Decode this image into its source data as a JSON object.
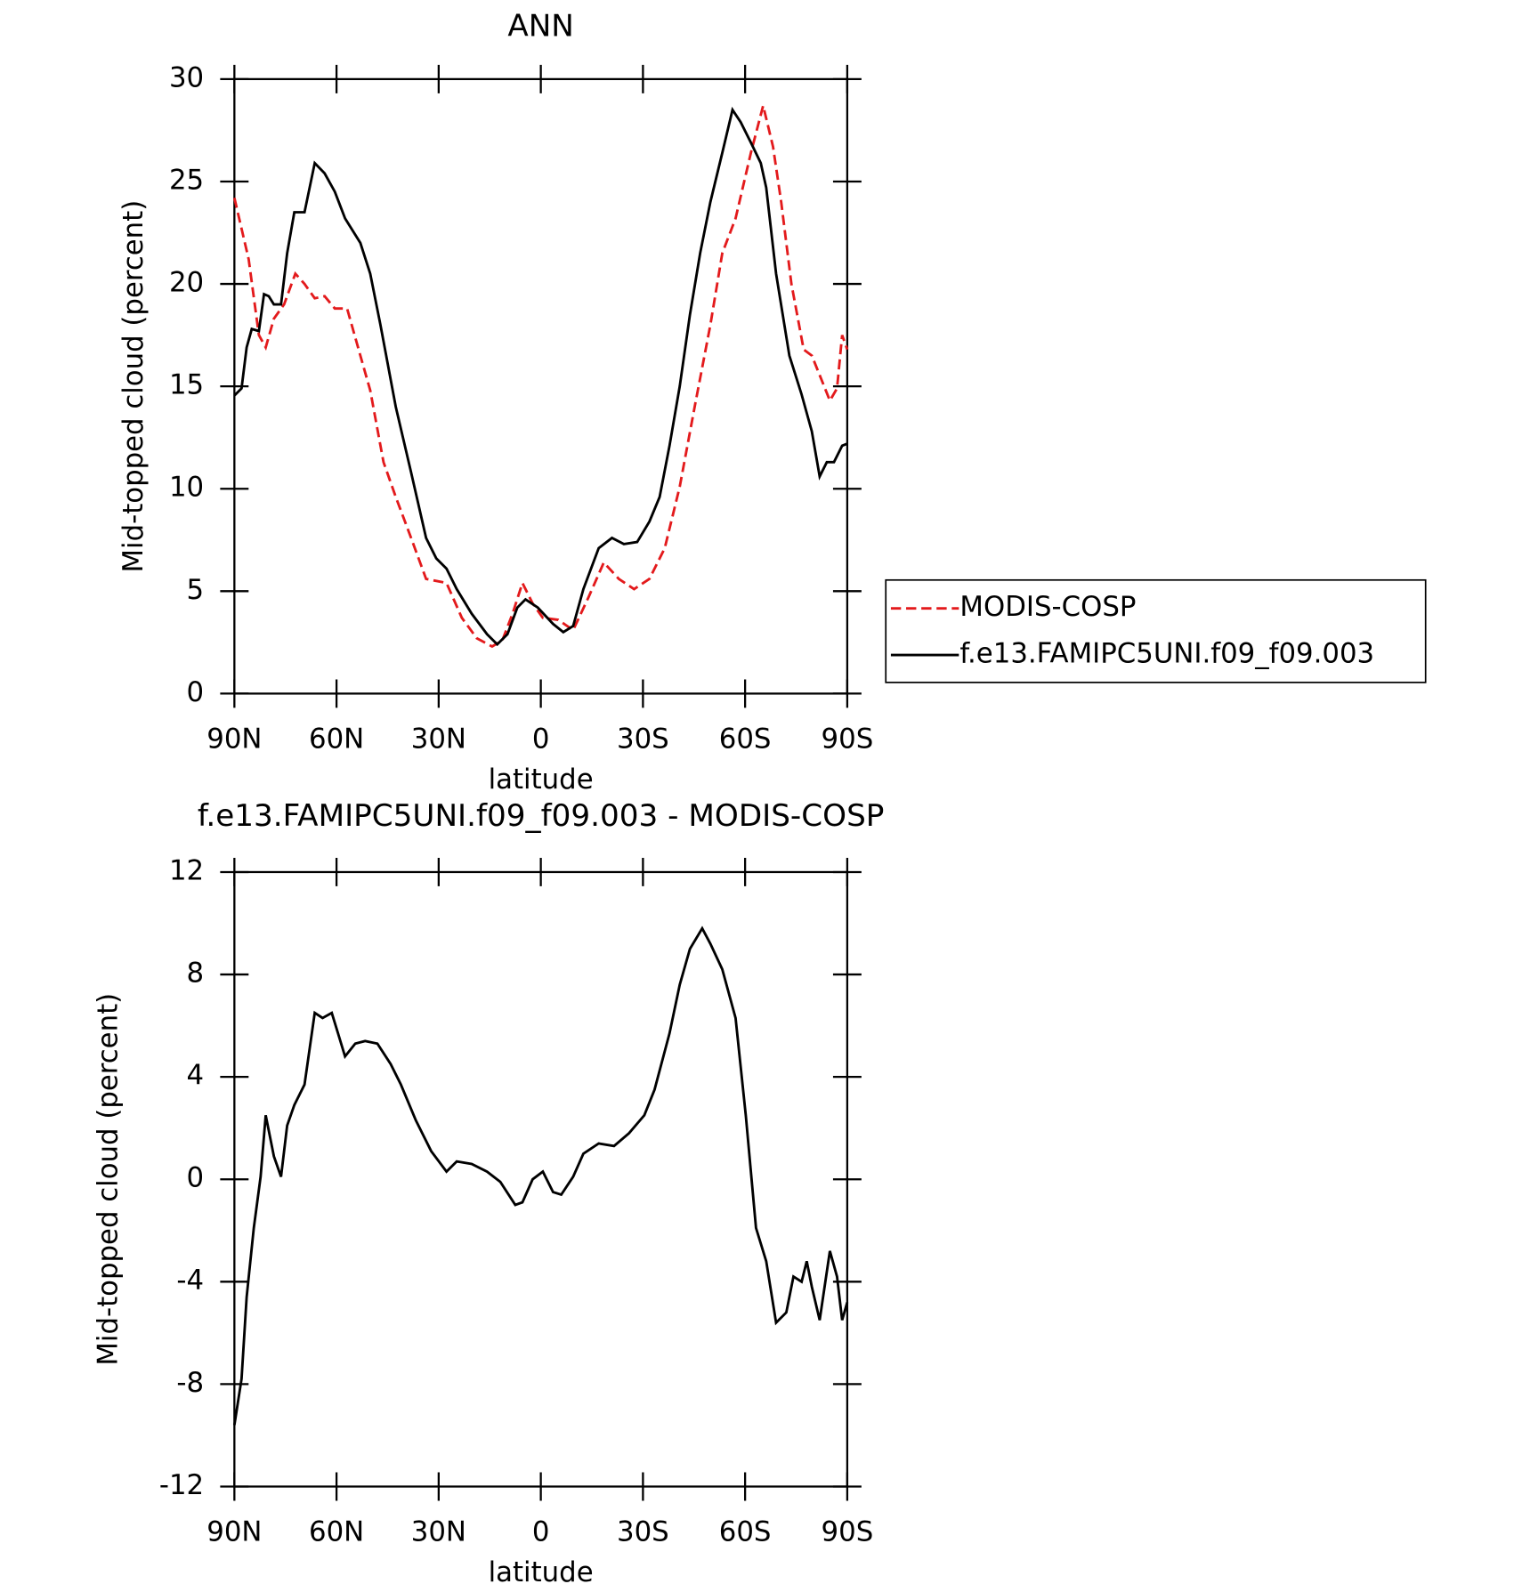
{
  "chart_data": [
    {
      "type": "line",
      "title": "ANN",
      "xlabel": "latitude",
      "ylabel": "Mid-topped cloud (percent)",
      "xlim": [
        90,
        -90
      ],
      "ylim": [
        0,
        30
      ],
      "xticks": [
        {
          "value": 90,
          "label": "90N"
        },
        {
          "value": 60,
          "label": "60N"
        },
        {
          "value": 30,
          "label": "30N"
        },
        0,
        {
          "value": -30,
          "label": "30S"
        },
        {
          "value": -60,
          "label": "60S"
        },
        {
          "value": -90,
          "label": "90S"
        }
      ],
      "yticks": [
        0,
        5,
        10,
        15,
        20,
        25,
        30
      ],
      "legend": "right",
      "series": [
        {
          "name": "MODIS-COSP",
          "color": "#e31a1c",
          "dash": true,
          "x": [
            90,
            87.9,
            85.8,
            82.8,
            80.8,
            78.4,
            75.4,
            72.1,
            69.4,
            66.4,
            63.5,
            60.5,
            56.9,
            53.0,
            50.1,
            46.2,
            42.6,
            38.1,
            33.7,
            27.7,
            23.2,
            18.8,
            14.3,
            11.3,
            8.3,
            5.4,
            2.4,
            -0.6,
            -5.1,
            -9.5,
            -14,
            -18.5,
            -22.9,
            -27.4,
            -31.9,
            -36.4,
            -40.8,
            -45.3,
            -49.8,
            -53.3,
            -57.2,
            -61.7,
            -65.3,
            -68.2,
            -70.6,
            -73.6,
            -77.2,
            -79.6,
            -82.5,
            -84.9,
            -87,
            -88.5,
            -90
          ],
          "values": [
            24.2,
            22.7,
            21.2,
            17.5,
            16.9,
            18.3,
            19.0,
            20.5,
            20.0,
            19.3,
            19.4,
            18.8,
            18.8,
            16.5,
            14.8,
            11.3,
            9.6,
            7.6,
            5.6,
            5.4,
            3.7,
            2.7,
            2.3,
            2.6,
            3.9,
            5.4,
            4.4,
            3.7,
            3.6,
            3.1,
            4.7,
            6.4,
            5.6,
            5.1,
            5.6,
            7.1,
            10.1,
            14.1,
            18.0,
            21.5,
            23.2,
            26.4,
            28.7,
            26.7,
            24.0,
            20.0,
            16.8,
            16.5,
            15.3,
            14.3,
            14.9,
            17.5,
            16.8
          ]
        },
        {
          "name": "f.e13.FAMIPC5UNI.f09_f09.003",
          "color": "#000000",
          "dash": false,
          "x": [
            90,
            87.9,
            86.4,
            84.9,
            82.8,
            81.3,
            79.9,
            78.4,
            76.3,
            74.5,
            72.4,
            69.4,
            66.4,
            63.5,
            60.5,
            57.5,
            53.0,
            50.1,
            47.1,
            42.6,
            38.1,
            33.7,
            30.7,
            27.7,
            24.7,
            20.3,
            15.8,
            12.8,
            9.8,
            6.9,
            4.5,
            0.9,
            -3.6,
            -6.6,
            -9.5,
            -12.5,
            -17,
            -20.9,
            -24.4,
            -28.3,
            -31.9,
            -34.9,
            -37.8,
            -40.8,
            -43.8,
            -46.8,
            -49.8,
            -53.3,
            -56.3,
            -58.7,
            -61.7,
            -64.6,
            -66.2,
            -69.1,
            -73,
            -76.6,
            -79.6,
            -81.9,
            -84,
            -86.1,
            -88.5,
            -90
          ],
          "values": [
            14.55,
            14.9,
            16.9,
            17.8,
            17.7,
            19.5,
            19.4,
            19.0,
            19.0,
            21.5,
            23.5,
            23.5,
            25.9,
            25.4,
            24.5,
            23.2,
            22.0,
            20.5,
            18.0,
            14.0,
            10.8,
            7.6,
            6.6,
            6.1,
            5.1,
            3.9,
            2.9,
            2.4,
            2.9,
            4.2,
            4.6,
            4.2,
            3.4,
            3.0,
            3.3,
            5.1,
            7.1,
            7.6,
            7.3,
            7.4,
            8.4,
            9.6,
            12.1,
            15.0,
            18.5,
            21.5,
            24.0,
            26.4,
            28.5,
            27.9,
            26.9,
            25.9,
            24.7,
            20.5,
            16.5,
            14.6,
            12.8,
            10.6,
            11.3,
            11.3,
            12.1,
            12.2
          ]
        }
      ]
    },
    {
      "type": "line",
      "title": "f.e13.FAMIPC5UNI.f09_f09.003 - MODIS-COSP",
      "xlabel": "latitude",
      "ylabel": "Mid-topped cloud (percent)",
      "xlim": [
        90,
        -90
      ],
      "ylim": [
        -12,
        12
      ],
      "xticks": [
        {
          "value": 90,
          "label": "90N"
        },
        {
          "value": 60,
          "label": "60N"
        },
        {
          "value": 30,
          "label": "30N"
        },
        0,
        {
          "value": -30,
          "label": "30S"
        },
        {
          "value": -60,
          "label": "60S"
        },
        {
          "value": -90,
          "label": "90S"
        }
      ],
      "yticks": [
        -12,
        -8,
        -4,
        0,
        4,
        8,
        12
      ],
      "series": [
        {
          "color": "#000000",
          "dash": false,
          "x": [
            90,
            87.9,
            86.4,
            84.3,
            82.3,
            80.8,
            78.4,
            76.3,
            74.5,
            72.4,
            69.4,
            66.4,
            64.1,
            61.4,
            57.5,
            54.5,
            51.6,
            48.0,
            44.1,
            41.1,
            36.7,
            32.2,
            27.7,
            24.7,
            20.3,
            15.8,
            11.9,
            7.5,
            5.4,
            2.4,
            -0.6,
            -3.6,
            -6.0,
            -9.5,
            -12.5,
            -17,
            -21.5,
            -25.9,
            -30.4,
            -33.4,
            -37.8,
            -40.8,
            -43.8,
            -47.4,
            -49.8,
            -53.3,
            -57.2,
            -60.2,
            -63.2,
            -66.2,
            -69.1,
            -72.1,
            -74.2,
            -76.6,
            -78.1,
            -79.6,
            -81.9,
            -84.9,
            -87,
            -88.5,
            -90
          ],
          "values": [
            -9.6,
            -7.8,
            -4.6,
            -1.9,
            0.1,
            2.5,
            0.9,
            0.1,
            2.1,
            2.9,
            3.7,
            6.5,
            6.3,
            6.5,
            4.8,
            5.3,
            5.4,
            5.3,
            4.5,
            3.7,
            2.3,
            1.1,
            0.3,
            0.7,
            0.6,
            0.3,
            -0.1,
            -1.0,
            -0.9,
            0,
            0.3,
            -0.5,
            -0.6,
            0.1,
            1.0,
            1.4,
            1.3,
            1.8,
            2.5,
            3.5,
            5.7,
            7.6,
            9.0,
            9.8,
            9.2,
            8.2,
            6.3,
            2.5,
            -1.9,
            -3.2,
            -5.6,
            -5.2,
            -3.8,
            -4.0,
            -3.2,
            -4.2,
            -5.5,
            -2.8,
            -3.8,
            -5.5,
            -4.8
          ]
        }
      ]
    }
  ]
}
